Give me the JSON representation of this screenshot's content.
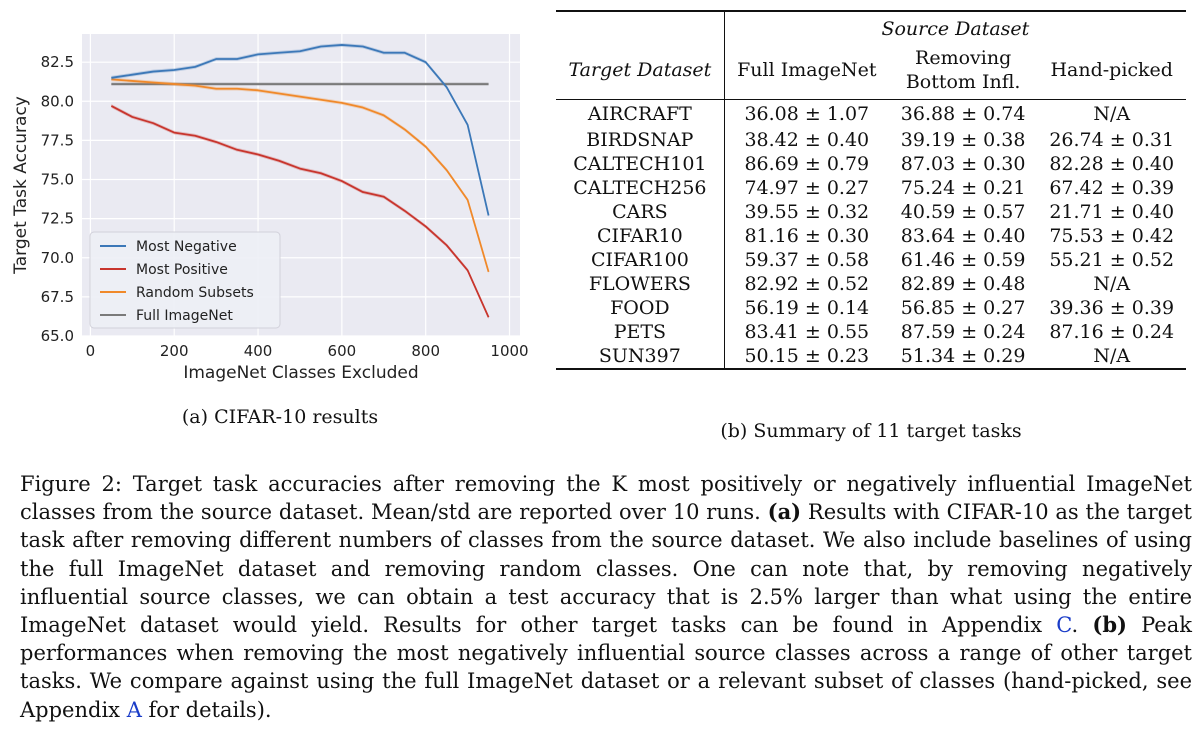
{
  "panel_a": {
    "caption": "(a) CIFAR-10 results",
    "legend_items": [
      {
        "label": "Most Negative",
        "color": "#3c78b8"
      },
      {
        "label": "Most Positive",
        "color": "#c8352d"
      },
      {
        "label": "Random Subsets",
        "color": "#f0892a"
      },
      {
        "label": "Full ImageNet",
        "color": "#7a7a7a"
      }
    ]
  },
  "chart_data": {
    "type": "line",
    "title": "",
    "xlabel": "ImageNet Classes Excluded",
    "ylabel": "Target Task Accuracy",
    "xlim": [
      -20,
      1025
    ],
    "ylim": [
      65,
      84.3
    ],
    "xticks": [
      0,
      200,
      400,
      600,
      800,
      1000
    ],
    "yticks": [
      65.0,
      67.5,
      70.0,
      72.5,
      75.0,
      77.5,
      80.0,
      82.5
    ],
    "grid": true,
    "background": "#eaeaf2",
    "legend_position": "lower-left",
    "series": [
      {
        "name": "Most Negative",
        "color": "#3c78b8",
        "x": [
          50,
          100,
          150,
          200,
          250,
          300,
          350,
          400,
          450,
          500,
          550,
          600,
          650,
          700,
          750,
          800,
          850,
          900,
          950
        ],
        "y": [
          81.5,
          81.7,
          81.9,
          82.0,
          82.2,
          82.7,
          82.7,
          83.0,
          83.1,
          83.2,
          83.5,
          83.6,
          83.5,
          83.1,
          83.1,
          82.5,
          80.9,
          78.5,
          72.7
        ]
      },
      {
        "name": "Most Positive",
        "color": "#c8352d",
        "x": [
          50,
          100,
          150,
          200,
          250,
          300,
          350,
          400,
          450,
          500,
          550,
          600,
          650,
          700,
          750,
          800,
          850,
          900,
          950
        ],
        "y": [
          79.7,
          79.0,
          78.6,
          78.0,
          77.8,
          77.4,
          76.9,
          76.6,
          76.2,
          75.7,
          75.4,
          74.9,
          74.2,
          73.9,
          73.0,
          72.0,
          70.8,
          69.2,
          66.2
        ]
      },
      {
        "name": "Random Subsets",
        "color": "#f0892a",
        "x": [
          50,
          100,
          150,
          200,
          250,
          300,
          350,
          400,
          450,
          500,
          550,
          600,
          650,
          700,
          750,
          800,
          850,
          900,
          950
        ],
        "y": [
          81.4,
          81.3,
          81.2,
          81.1,
          81.0,
          80.8,
          80.8,
          80.7,
          80.5,
          80.3,
          80.1,
          79.9,
          79.6,
          79.1,
          78.2,
          77.1,
          75.6,
          73.7,
          69.1
        ]
      },
      {
        "name": "Full ImageNet",
        "color": "#7a7a7a",
        "x": [
          50,
          950
        ],
        "y": [
          81.1,
          81.1
        ]
      }
    ]
  },
  "panel_b": {
    "caption": "(b) Summary of 11 target tasks",
    "header": {
      "target_col": "Target Dataset",
      "group_title": "Source Dataset",
      "col_full": "Full ImageNet",
      "col_remove_line1": "Removing",
      "col_remove_line2": "Bottom Infl.",
      "col_hand": "Hand-picked"
    },
    "rows": [
      {
        "dataset": "AIRCRAFT",
        "full": "36.08 ± 1.07",
        "remove": "36.88 ± 0.74",
        "hand": "N/A",
        "best": "remove"
      },
      {
        "dataset": "BIRDSNAP",
        "full": "38.42 ± 0.40",
        "remove": "39.19 ± 0.38",
        "hand": "26.74 ± 0.31",
        "best": "remove"
      },
      {
        "dataset": "CALTECH101",
        "full": "86.69 ± 0.79",
        "remove": "87.03 ± 0.30",
        "hand": "82.28 ± 0.40",
        "best": "remove"
      },
      {
        "dataset": "CALTECH256",
        "full": "74.97 ± 0.27",
        "remove": "75.24 ± 0.21",
        "hand": "67.42 ± 0.39",
        "best": "remove"
      },
      {
        "dataset": "CARS",
        "full": "39.55 ± 0.32",
        "remove": "40.59 ± 0.57",
        "hand": "21.71 ± 0.40",
        "best": "remove"
      },
      {
        "dataset": "CIFAR10",
        "full": "81.16 ± 0.30",
        "remove": "83.64 ± 0.40",
        "hand": "75.53 ± 0.42",
        "best": "remove"
      },
      {
        "dataset": "CIFAR100",
        "full": "59.37 ± 0.58",
        "remove": "61.46 ± 0.59",
        "hand": "55.21 ± 0.52",
        "best": "remove"
      },
      {
        "dataset": "FLOWERS",
        "full": "82.92 ± 0.52",
        "remove": "82.89 ± 0.48",
        "hand": "N/A",
        "best": "full"
      },
      {
        "dataset": "FOOD",
        "full": "56.19 ± 0.14",
        "remove": "56.85 ± 0.27",
        "hand": "39.36 ± 0.39",
        "best": "remove"
      },
      {
        "dataset": "PETS",
        "full": "83.41 ± 0.55",
        "remove": "87.59 ± 0.24",
        "hand": "87.16 ± 0.24",
        "best": "remove"
      },
      {
        "dataset": "SUN397",
        "full": "50.15 ± 0.23",
        "remove": "51.34 ± 0.29",
        "hand": "N/A",
        "best": "remove"
      }
    ]
  },
  "figure_caption": {
    "lead": "Figure 2: Target task accuracies after removing the K most positively or negatively influential ImageNet classes from the source dataset. Mean/std are reported over 10 runs. ",
    "a_label": "(a)",
    "a_text": " Results with CIFAR-10 as the target task after removing different numbers of classes from the source dataset. We also include baselines of using the full ImageNet dataset and removing random classes. One can note that, by removing negatively influential source classes, we can obtain a test accuracy that is 2.5% larger than what using the entire ImageNet dataset would yield. Results for other target tasks can be found in Appendix ",
    "ref_c": "C",
    "after_c": ". ",
    "b_label": "(b)",
    "b_text": " Peak performances when removing the most negatively influential source classes across a range of other target tasks. We compare against using the full ImageNet dataset or a relevant subset of classes (hand-picked, see Appendix ",
    "ref_a": "A",
    "tail": " for details)."
  }
}
